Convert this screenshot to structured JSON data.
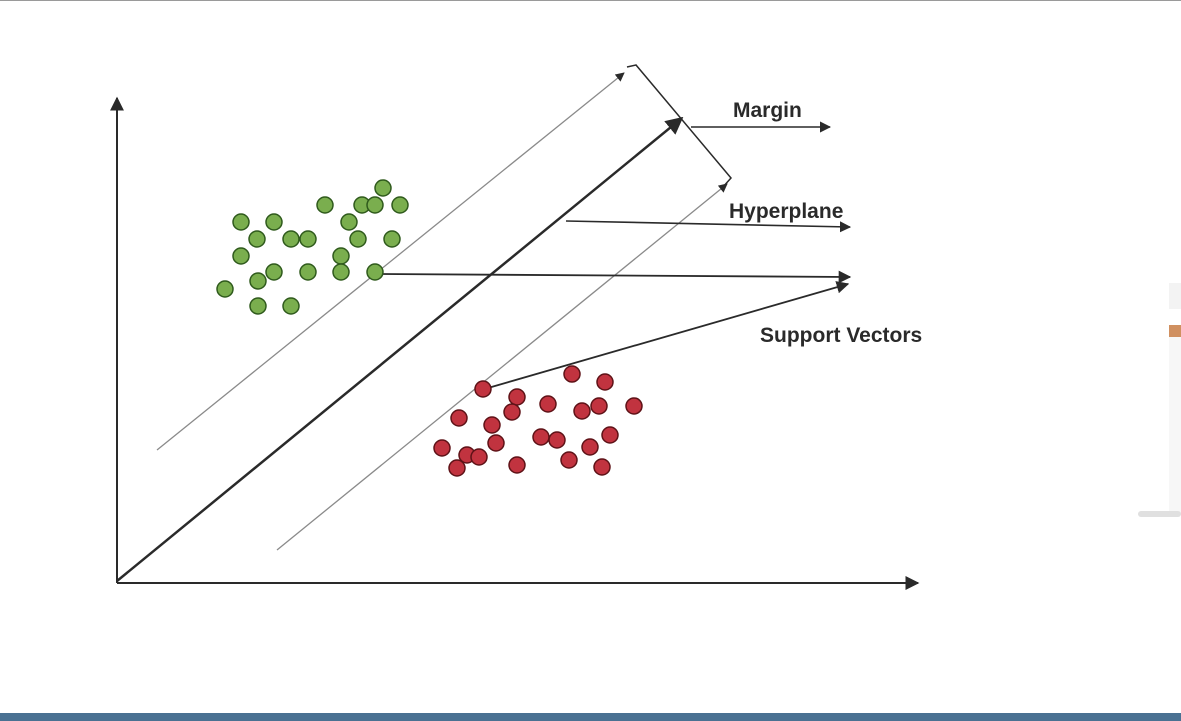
{
  "labels": {
    "margin": "Margin",
    "hyperplane": "Hyperplane",
    "support_vectors": "Support Vectors"
  },
  "colors": {
    "green_fill": "#7aae4e",
    "green_stroke": "#2f5a1c",
    "red_fill": "#c1333f",
    "red_stroke": "#5e1217",
    "line": "#2a2a2a",
    "margin_line": "#8a8a8a",
    "bottom_bar": "#4a7192",
    "orange_accent": "#d09060"
  },
  "icons": {
    "axis_arrowhead": "arrowhead-icon"
  }
}
